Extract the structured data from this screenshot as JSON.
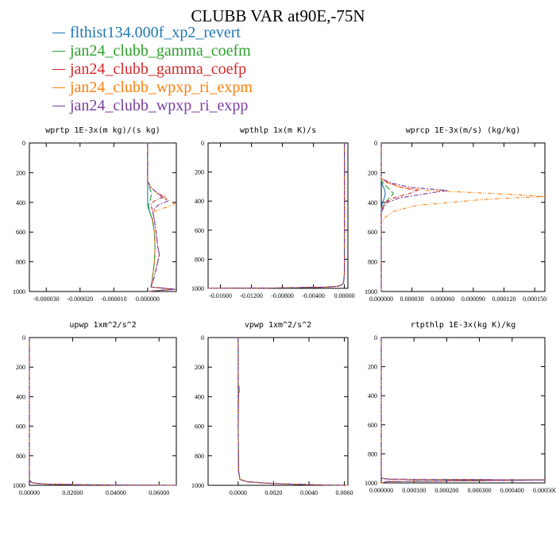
{
  "title": "CLUBB VAR at90E,-75N",
  "legend": [
    {
      "label": "flthist134.000f_xp2_revert",
      "color": "#1f77b4"
    },
    {
      "label": "jan24_clubb_gamma_coefm",
      "color": "#2ca02c"
    },
    {
      "label": "jan24_clubb_gamma_coefp",
      "color": "#d62728"
    },
    {
      "label": "jan24_clubb_wpxp_ri_expm",
      "color": "#ff7f0e"
    },
    {
      "label": "jan24_clubb_wpxp_ri_expp",
      "color": "#7b3f9e"
    }
  ],
  "chart_data": [
    {
      "type": "line",
      "title": "wprtp  1E-3x(m kg)/(s kg)",
      "xlim": [
        -3.5e-05,
        8.5e-06
      ],
      "ylim": [
        1000,
        0
      ],
      "xticks": [
        "-0.000030",
        "-0.000020",
        "-0.000010",
        "0.000000"
      ],
      "xtick_values": [
        -3e-05,
        -2e-05,
        -1e-05,
        0
      ],
      "yticks": [
        "0",
        "200",
        "400",
        "600",
        "800",
        "1000"
      ],
      "ytick_values": [
        0,
        200,
        400,
        600,
        800,
        1000
      ],
      "series": [
        {
          "y": [
            0,
            260,
            300,
            340,
            380,
            420,
            460,
            520,
            600,
            700,
            800,
            900,
            970,
            985,
            995,
            1000
          ],
          "x": [
            0,
            0,
            0,
            0,
            0,
            0,
            5e-07,
            1.5e-06,
            2e-06,
            2.2e-06,
            2e-06,
            1.5e-06,
            1e-06,
            8e-06,
            2e-06,
            0
          ]
        },
        {
          "y": [
            0,
            260,
            300,
            340,
            380,
            420,
            460,
            520,
            600,
            700,
            800,
            900,
            970,
            985,
            995,
            1000
          ],
          "x": [
            0,
            0,
            5e-07,
            1.2e-06,
            8e-07,
            3e-07,
            6e-07,
            1.4e-06,
            2e-06,
            2.2e-06,
            2e-06,
            1.5e-06,
            1e-06,
            7.5e-06,
            2e-06,
            0
          ]
        },
        {
          "y": [
            0,
            260,
            300,
            340,
            360,
            390,
            420,
            460,
            520,
            600,
            700,
            750,
            800,
            900,
            970,
            985,
            995,
            1000
          ],
          "x": [
            0,
            0,
            1e-06,
            3e-06,
            5e-06,
            2e-06,
            1e-06,
            1.5e-06,
            2e-06,
            2.5e-06,
            3e-06,
            3.5e-06,
            3e-06,
            2e-06,
            1e-06,
            8e-06,
            2e-06,
            0
          ]
        },
        {
          "y": [
            0,
            260,
            300,
            340,
            380,
            410,
            430,
            460,
            520,
            600,
            700,
            800,
            900,
            970,
            985,
            995,
            1000
          ],
          "x": [
            0,
            0,
            1e-06,
            3e-06,
            6e-06,
            8e-06,
            6e-06,
            2e-06,
            1.5e-06,
            2e-06,
            2.2e-06,
            2e-06,
            1.5e-06,
            1e-06,
            8e-06,
            2e-06,
            0
          ]
        },
        {
          "y": [
            0,
            260,
            300,
            330,
            360,
            390,
            420,
            460,
            520,
            600,
            700,
            750,
            800,
            900,
            970,
            985,
            995,
            1000
          ],
          "x": [
            0,
            0,
            1e-06,
            2.5e-06,
            4e-06,
            6e-06,
            3e-06,
            1.5e-06,
            2e-06,
            2.5e-06,
            3e-06,
            3.5e-06,
            3e-06,
            2e-06,
            1e-06,
            8.5e-06,
            2e-06,
            0
          ]
        }
      ]
    },
    {
      "type": "line",
      "title": "wpthlp  1x(m K)/s",
      "xlim": [
        -0.0176,
        0.00045
      ],
      "ylim": [
        1000,
        0
      ],
      "xticks": [
        "-0.01600",
        "-0.01200",
        "-0.00800",
        "-0.00400",
        "0.00000"
      ],
      "xtick_values": [
        -0.016,
        -0.012,
        -0.008,
        -0.004,
        0
      ],
      "yticks": [
        "0",
        "200",
        "400",
        "600",
        "800",
        "1000"
      ],
      "ytick_values": [
        0,
        200,
        400,
        600,
        800,
        1000
      ],
      "series": [
        {
          "y": [
            0,
            900,
            960,
            975,
            985,
            992,
            997,
            1000
          ],
          "x": [
            0,
            0,
            -0.0001,
            -0.0003,
            -0.0008,
            -0.0025,
            -0.009,
            -0.0176
          ]
        },
        {
          "y": [
            0,
            900,
            960,
            975,
            985,
            992,
            997,
            1000
          ],
          "x": [
            0,
            0,
            -0.0001,
            -0.0003,
            -0.0008,
            -0.0025,
            -0.009,
            -0.0176
          ]
        },
        {
          "y": [
            0,
            900,
            960,
            975,
            985,
            992,
            997,
            1000
          ],
          "x": [
            0,
            0,
            -0.0001,
            -0.0003,
            -0.0008,
            -0.0025,
            -0.009,
            -0.0176
          ]
        },
        {
          "y": [
            0,
            900,
            960,
            975,
            985,
            992,
            997,
            1000
          ],
          "x": [
            0,
            0,
            -0.0001,
            -0.0003,
            -0.0008,
            -0.0025,
            -0.009,
            -0.0176
          ]
        },
        {
          "y": [
            0,
            900,
            960,
            975,
            985,
            992,
            997,
            1000
          ],
          "x": [
            0,
            0,
            -0.0001,
            -0.0003,
            -0.0008,
            -0.0025,
            -0.009,
            -0.0176
          ]
        }
      ]
    },
    {
      "type": "line",
      "title": "wprcp  1E-3x(m/s) (kg/kg)",
      "xlim": [
        0,
        0.00016
      ],
      "ylim": [
        1000,
        0
      ],
      "xticks": [
        "0.000000",
        "0.000030",
        "0.000060",
        "0.000090",
        "0.000120",
        "0.000150"
      ],
      "xtick_values": [
        0,
        3e-05,
        6e-05,
        9e-05,
        0.00012,
        0.00015
      ],
      "yticks": [
        "0",
        "200",
        "400",
        "600",
        "800",
        "1000"
      ],
      "ytick_values": [
        0,
        200,
        400,
        600,
        800,
        1000
      ],
      "series": [
        {
          "y": [
            0,
            250,
            280,
            310,
            340,
            370,
            410,
            440,
            1000
          ],
          "x": [
            0,
            0,
            1e-06,
            3e-06,
            4e-06,
            3e-06,
            1e-06,
            0,
            0
          ]
        },
        {
          "y": [
            0,
            250,
            280,
            310,
            340,
            370,
            410,
            450,
            1000
          ],
          "x": [
            0,
            0,
            3e-06,
            8e-06,
            1.2e-05,
            8e-06,
            3e-06,
            0,
            0
          ]
        },
        {
          "y": [
            0,
            240,
            270,
            300,
            320,
            340,
            370,
            400,
            440,
            470,
            1000
          ],
          "x": [
            0,
            0,
            8e-06,
            2e-05,
            3.5e-05,
            2.8e-05,
            1.2e-05,
            4e-06,
            1e-06,
            0,
            0
          ]
        },
        {
          "y": [
            0,
            240,
            270,
            300,
            320,
            340,
            360,
            380,
            420,
            460,
            500,
            540,
            1000
          ],
          "x": [
            0,
            0,
            6e-06,
            2e-05,
            4.5e-05,
            0.00011,
            0.00016,
            0.0001,
            3.5e-05,
            1.2e-05,
            4e-06,
            0,
            0
          ]
        },
        {
          "y": [
            0,
            240,
            270,
            300,
            320,
            340,
            370,
            400,
            440,
            470,
            1000
          ],
          "x": [
            0,
            0,
            1e-05,
            3e-05,
            6.5e-05,
            4.5e-05,
            1.8e-05,
            6e-06,
            2e-06,
            0,
            0
          ]
        }
      ]
    },
    {
      "type": "line",
      "title": "upwp  1xm^2/s^2",
      "xlim": [
        0,
        0.068
      ],
      "ylim": [
        1000,
        0
      ],
      "xticks": [
        "0.00000",
        "0.02000",
        "0.04000",
        "0.06000"
      ],
      "xtick_values": [
        0,
        0.02,
        0.04,
        0.06
      ],
      "yticks": [
        "0",
        "200",
        "400",
        "600",
        "800",
        "1000"
      ],
      "ytick_values": [
        0,
        200,
        400,
        600,
        800,
        1000
      ],
      "series": [
        {
          "y": [
            0,
            960,
            975,
            985,
            992,
            997,
            1000
          ],
          "x": [
            0,
            0,
            0.0005,
            0.002,
            0.008,
            0.03,
            0.068
          ]
        },
        {
          "y": [
            0,
            960,
            975,
            985,
            992,
            997,
            1000
          ],
          "x": [
            0,
            0,
            0.0005,
            0.002,
            0.008,
            0.03,
            0.068
          ]
        },
        {
          "y": [
            0,
            960,
            975,
            985,
            992,
            997,
            1000
          ],
          "x": [
            0,
            0,
            0.0005,
            0.002,
            0.008,
            0.03,
            0.068
          ]
        },
        {
          "y": [
            0,
            960,
            975,
            985,
            992,
            997,
            1000
          ],
          "x": [
            0,
            0,
            0.0005,
            0.002,
            0.008,
            0.03,
            0.068
          ]
        },
        {
          "y": [
            0,
            960,
            975,
            985,
            992,
            997,
            1000
          ],
          "x": [
            0,
            0,
            0.0005,
            0.002,
            0.008,
            0.03,
            0.068
          ]
        }
      ]
    },
    {
      "type": "line",
      "title": "vpwp  1xm^2/s^2",
      "xlim": [
        -0.0017,
        0.0062
      ],
      "ylim": [
        1000,
        0
      ],
      "xticks": [
        "0.0000",
        "0.0020",
        "0.0040",
        "0.0060"
      ],
      "xtick_values": [
        0,
        0.002,
        0.004,
        0.006
      ],
      "yticks": [
        "0",
        "200",
        "400",
        "600",
        "800",
        "1000"
      ],
      "ytick_values": [
        0,
        200,
        400,
        600,
        800,
        1000
      ],
      "series": [
        {
          "y": [
            0,
            300,
            350,
            400,
            600,
            900,
            960,
            975,
            985,
            992,
            997,
            1000
          ],
          "x": [
            0,
            0,
            0,
            0,
            0,
            2e-05,
            0.0001,
            0.0005,
            0.0015,
            0.003,
            0.0045,
            0.006
          ]
        },
        {
          "y": [
            0,
            300,
            350,
            400,
            600,
            900,
            960,
            975,
            985,
            992,
            997,
            1000
          ],
          "x": [
            0,
            0,
            0,
            0,
            0,
            2e-05,
            0.0001,
            0.0005,
            0.0015,
            0.003,
            0.0045,
            0.006
          ]
        },
        {
          "y": [
            0,
            300,
            350,
            400,
            600,
            900,
            960,
            975,
            985,
            992,
            997,
            1000
          ],
          "x": [
            0,
            0,
            3e-05,
            0,
            0,
            2e-05,
            0.0001,
            0.0005,
            0.0015,
            0.003,
            0.0045,
            0.006
          ]
        },
        {
          "y": [
            0,
            300,
            350,
            400,
            600,
            900,
            960,
            975,
            985,
            992,
            997,
            1000
          ],
          "x": [
            0,
            0,
            8e-05,
            3e-05,
            0,
            2e-05,
            0.0001,
            0.0005,
            0.0015,
            0.003,
            0.0045,
            0.0062
          ]
        },
        {
          "y": [
            0,
            300,
            350,
            400,
            600,
            900,
            960,
            975,
            985,
            992,
            997,
            1000
          ],
          "x": [
            0,
            0,
            5e-05,
            2e-05,
            0,
            2e-05,
            0.0001,
            0.0005,
            0.0015,
            0.003,
            0.0045,
            0.006
          ]
        }
      ]
    },
    {
      "type": "line",
      "title": "rtpthlp  1E-3x(kg K)/kg",
      "xlim": [
        0,
        0.0005
      ],
      "ylim": [
        1000,
        0
      ],
      "xticks": [
        "0.000000",
        "0.000100",
        "0.000200",
        "0.000300",
        "0.000400",
        "0.000500"
      ],
      "xtick_values": [
        0,
        0.0001,
        0.0002,
        0.0003,
        0.0004,
        0.0005
      ],
      "yticks": [
        "0",
        "200",
        "400",
        "600",
        "800",
        "1000"
      ],
      "ytick_values": [
        0,
        200,
        400,
        600,
        800,
        1000
      ],
      "series": [
        {
          "y": [
            0,
            960,
            970,
            975,
            980,
            990,
            1000
          ],
          "x": [
            0,
            0,
            5e-06,
            3e-05,
            0.0005,
            2e-05,
            0
          ]
        },
        {
          "y": [
            0,
            960,
            970,
            975,
            980,
            990,
            1000
          ],
          "x": [
            0,
            0,
            5e-06,
            3e-05,
            0.0005,
            2e-05,
            0
          ]
        },
        {
          "y": [
            0,
            960,
            970,
            975,
            980,
            990,
            1000
          ],
          "x": [
            0,
            0,
            5e-06,
            3e-05,
            0.0005,
            2e-05,
            0
          ]
        },
        {
          "y": [
            0,
            960,
            970,
            975,
            980,
            990,
            1000
          ],
          "x": [
            0,
            0,
            5e-06,
            3e-05,
            0.0005,
            2e-05,
            0
          ]
        },
        {
          "y": [
            0,
            960,
            970,
            975,
            980,
            990,
            1000
          ],
          "x": [
            0,
            0,
            5e-06,
            3e-05,
            0.0005,
            2e-05,
            0
          ]
        }
      ]
    }
  ]
}
